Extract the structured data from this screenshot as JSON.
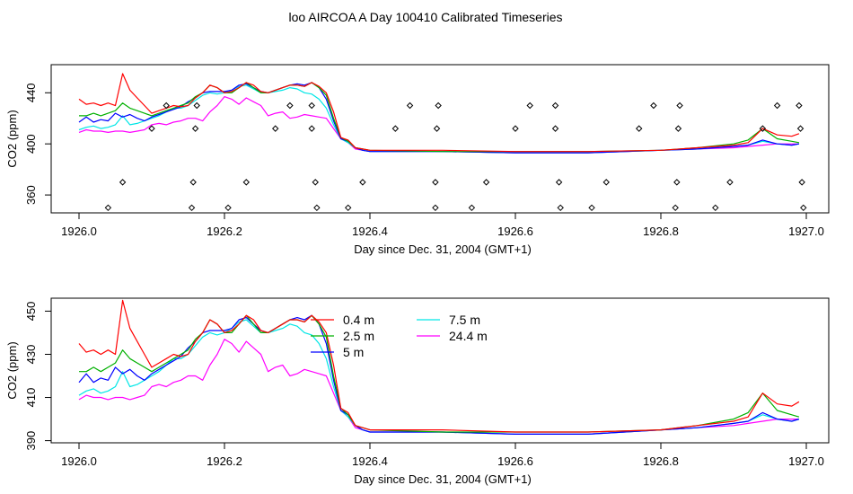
{
  "figure": {
    "title": "loo AIRCOA A  Day 100410  Calibrated Timeseries"
  },
  "colors": {
    "0.4 m": "#ff0000",
    "2.5 m": "#00b000",
    "5 m": "#0000ff",
    "7.5 m": "#00e6e6",
    "24.4 m": "#ff00ff",
    "markers": "#000000"
  },
  "chart_data": [
    {
      "type": "line",
      "xlabel": "Day since Dec. 31, 2004 (GMT+1)",
      "ylabel": "CO2 (ppm)",
      "xlim": [
        1926.0,
        1927.0
      ],
      "ylim": [
        346,
        462
      ],
      "xticks": [
        "1926.0",
        "1926.2",
        "1926.4",
        "1926.6",
        "1926.8",
        "1927.0"
      ],
      "yticks": [
        "360",
        "400",
        "440"
      ],
      "x": [
        1926.0,
        1926.01,
        1926.02,
        1926.03,
        1926.04,
        1926.05,
        1926.06,
        1926.07,
        1926.08,
        1926.09,
        1926.1,
        1926.11,
        1926.12,
        1926.13,
        1926.14,
        1926.15,
        1926.16,
        1926.17,
        1926.18,
        1926.19,
        1926.2,
        1926.21,
        1926.22,
        1926.23,
        1926.24,
        1926.25,
        1926.26,
        1926.27,
        1926.28,
        1926.29,
        1926.3,
        1926.31,
        1926.32,
        1926.33,
        1926.34,
        1926.35,
        1926.36,
        1926.37,
        1926.38,
        1926.39,
        1926.4,
        1926.5,
        1926.6,
        1926.7,
        1926.8,
        1926.85,
        1926.9,
        1926.92,
        1926.94,
        1926.96,
        1926.98,
        1926.99
      ],
      "series": [
        {
          "name": "0.4 m",
          "values": [
            435,
            431,
            432,
            430,
            432,
            430,
            455,
            442,
            436,
            430,
            424,
            426,
            428,
            430,
            429,
            430,
            436,
            440,
            446,
            444,
            440,
            441,
            444,
            448,
            446,
            441,
            440,
            442,
            444,
            446,
            446,
            445,
            448,
            445,
            440,
            425,
            405,
            403,
            397,
            396,
            395,
            395,
            394,
            394,
            395,
            397,
            399,
            401,
            412,
            407,
            406,
            408
          ]
        },
        {
          "name": "2.5 m",
          "values": [
            422,
            422,
            424,
            422,
            424,
            426,
            432,
            428,
            426,
            424,
            422,
            424,
            426,
            428,
            430,
            432,
            437,
            440,
            446,
            444,
            440,
            440,
            444,
            448,
            444,
            440,
            440,
            442,
            444,
            446,
            446,
            445,
            448,
            444,
            438,
            420,
            405,
            402,
            397,
            396,
            395,
            394,
            394,
            394,
            395,
            397,
            400,
            403,
            412,
            404,
            402,
            401
          ]
        },
        {
          "name": "5 m",
          "values": [
            417,
            421,
            417,
            419,
            418,
            424,
            421,
            423,
            420,
            418,
            421,
            423,
            425,
            427,
            429,
            433,
            436,
            440,
            441,
            441,
            441,
            442,
            446,
            447,
            444,
            441,
            440,
            442,
            444,
            446,
            447,
            446,
            448,
            444,
            435,
            418,
            404,
            402,
            397,
            395,
            394,
            394,
            393,
            393,
            395,
            396,
            398,
            399,
            403,
            400,
            399,
            400
          ]
        },
        {
          "name": "7.5 m",
          "values": [
            411,
            413,
            414,
            412,
            413,
            415,
            422,
            415,
            416,
            418,
            420,
            422,
            425,
            428,
            428,
            430,
            434,
            438,
            440,
            439,
            440,
            442,
            445,
            446,
            443,
            440,
            440,
            441,
            442,
            444,
            443,
            440,
            439,
            435,
            428,
            415,
            404,
            401,
            397,
            395,
            394,
            394,
            393,
            393,
            395,
            396,
            398,
            399,
            402,
            400,
            399,
            400
          ]
        },
        {
          "name": "24.4 m",
          "values": [
            409,
            411,
            410,
            410,
            409,
            410,
            410,
            409,
            410,
            411,
            415,
            416,
            415,
            417,
            418,
            420,
            420,
            418,
            425,
            430,
            437,
            435,
            431,
            436,
            433,
            430,
            422,
            424,
            425,
            420,
            421,
            423,
            422,
            421,
            420,
            412,
            404,
            401,
            396,
            395,
            394,
            394,
            393,
            393,
            395,
            396,
            397,
            398,
            399,
            400,
            400,
            400
          ]
        }
      ],
      "markers": {
        "shape": "open-diamond",
        "points": [
          {
            "x": 1926.04,
            "y": 350
          },
          {
            "x": 1926.06,
            "y": 370
          },
          {
            "x": 1926.1,
            "y": 412
          },
          {
            "x": 1926.12,
            "y": 430
          },
          {
            "x": 1926.155,
            "y": 350
          },
          {
            "x": 1926.157,
            "y": 370
          },
          {
            "x": 1926.16,
            "y": 412
          },
          {
            "x": 1926.162,
            "y": 430
          },
          {
            "x": 1926.205,
            "y": 350
          },
          {
            "x": 1926.23,
            "y": 370
          },
          {
            "x": 1926.27,
            "y": 412
          },
          {
            "x": 1926.29,
            "y": 430
          },
          {
            "x": 1926.32,
            "y": 412
          },
          {
            "x": 1926.32,
            "y": 430
          },
          {
            "x": 1926.325,
            "y": 370
          },
          {
            "x": 1926.327,
            "y": 350
          },
          {
            "x": 1926.37,
            "y": 350
          },
          {
            "x": 1926.39,
            "y": 370
          },
          {
            "x": 1926.435,
            "y": 412
          },
          {
            "x": 1926.455,
            "y": 430
          },
          {
            "x": 1926.49,
            "y": 350
          },
          {
            "x": 1926.49,
            "y": 370
          },
          {
            "x": 1926.492,
            "y": 412
          },
          {
            "x": 1926.494,
            "y": 430
          },
          {
            "x": 1926.54,
            "y": 350
          },
          {
            "x": 1926.56,
            "y": 370
          },
          {
            "x": 1926.6,
            "y": 412
          },
          {
            "x": 1926.62,
            "y": 430
          },
          {
            "x": 1926.655,
            "y": 412
          },
          {
            "x": 1926.655,
            "y": 430
          },
          {
            "x": 1926.66,
            "y": 370
          },
          {
            "x": 1926.662,
            "y": 350
          },
          {
            "x": 1926.705,
            "y": 350
          },
          {
            "x": 1926.725,
            "y": 370
          },
          {
            "x": 1926.77,
            "y": 412
          },
          {
            "x": 1926.79,
            "y": 430
          },
          {
            "x": 1926.82,
            "y": 350
          },
          {
            "x": 1926.822,
            "y": 370
          },
          {
            "x": 1926.824,
            "y": 412
          },
          {
            "x": 1926.826,
            "y": 430
          },
          {
            "x": 1926.875,
            "y": 350
          },
          {
            "x": 1926.895,
            "y": 370
          },
          {
            "x": 1926.94,
            "y": 412
          },
          {
            "x": 1926.96,
            "y": 430
          },
          {
            "x": 1926.99,
            "y": 430
          },
          {
            "x": 1926.992,
            "y": 412
          },
          {
            "x": 1926.994,
            "y": 370
          },
          {
            "x": 1926.996,
            "y": 350
          }
        ]
      }
    },
    {
      "type": "line",
      "xlabel": "Day since Dec. 31, 2004 (GMT+1)",
      "ylabel": "CO2 (ppm)",
      "xlim": [
        1926.0,
        1927.0
      ],
      "ylim": [
        389,
        456
      ],
      "xticks": [
        "1926.0",
        "1926.2",
        "1926.4",
        "1926.6",
        "1926.8",
        "1927.0"
      ],
      "yticks": [
        "390",
        "410",
        "430",
        "450"
      ],
      "legend": {
        "placement": "top-center",
        "entries": [
          "0.4 m",
          "2.5 m",
          "5 m",
          "7.5 m",
          "24.4 m"
        ]
      },
      "x": [
        1926.0,
        1926.01,
        1926.02,
        1926.03,
        1926.04,
        1926.05,
        1926.06,
        1926.07,
        1926.08,
        1926.09,
        1926.1,
        1926.11,
        1926.12,
        1926.13,
        1926.14,
        1926.15,
        1926.16,
        1926.17,
        1926.18,
        1926.19,
        1926.2,
        1926.21,
        1926.22,
        1926.23,
        1926.24,
        1926.25,
        1926.26,
        1926.27,
        1926.28,
        1926.29,
        1926.3,
        1926.31,
        1926.32,
        1926.33,
        1926.34,
        1926.35,
        1926.36,
        1926.37,
        1926.38,
        1926.39,
        1926.4,
        1926.5,
        1926.6,
        1926.7,
        1926.8,
        1926.85,
        1926.9,
        1926.92,
        1926.94,
        1926.96,
        1926.98,
        1926.99
      ],
      "series": [
        {
          "name": "0.4 m",
          "values": [
            435,
            431,
            432,
            430,
            432,
            430,
            455,
            442,
            436,
            430,
            424,
            426,
            428,
            430,
            429,
            430,
            436,
            440,
            446,
            444,
            440,
            441,
            444,
            448,
            446,
            441,
            440,
            442,
            444,
            446,
            446,
            445,
            448,
            445,
            440,
            425,
            405,
            403,
            397,
            396,
            395,
            395,
            394,
            394,
            395,
            397,
            399,
            401,
            412,
            407,
            406,
            408
          ]
        },
        {
          "name": "2.5 m",
          "values": [
            422,
            422,
            424,
            422,
            424,
            426,
            432,
            428,
            426,
            424,
            422,
            424,
            426,
            428,
            430,
            432,
            437,
            440,
            446,
            444,
            440,
            440,
            444,
            448,
            444,
            440,
            440,
            442,
            444,
            446,
            446,
            445,
            448,
            444,
            438,
            420,
            405,
            402,
            397,
            396,
            395,
            394,
            394,
            394,
            395,
            397,
            400,
            403,
            412,
            404,
            402,
            401
          ]
        },
        {
          "name": "5 m",
          "values": [
            417,
            421,
            417,
            419,
            418,
            424,
            421,
            423,
            420,
            418,
            421,
            423,
            425,
            427,
            429,
            433,
            436,
            440,
            441,
            441,
            441,
            442,
            446,
            447,
            444,
            441,
            440,
            442,
            444,
            446,
            447,
            446,
            448,
            444,
            435,
            418,
            404,
            402,
            397,
            395,
            394,
            394,
            393,
            393,
            395,
            396,
            398,
            399,
            403,
            400,
            399,
            400
          ]
        },
        {
          "name": "7.5 m",
          "values": [
            411,
            413,
            414,
            412,
            413,
            415,
            422,
            415,
            416,
            418,
            420,
            422,
            425,
            428,
            428,
            430,
            434,
            438,
            440,
            439,
            440,
            442,
            445,
            446,
            443,
            440,
            440,
            441,
            442,
            444,
            443,
            440,
            439,
            435,
            428,
            415,
            404,
            401,
            397,
            395,
            394,
            394,
            393,
            393,
            395,
            396,
            398,
            399,
            402,
            400,
            399,
            400
          ]
        },
        {
          "name": "24.4 m",
          "values": [
            409,
            411,
            410,
            410,
            409,
            410,
            410,
            409,
            410,
            411,
            415,
            416,
            415,
            417,
            418,
            420,
            420,
            418,
            425,
            430,
            437,
            435,
            431,
            436,
            433,
            430,
            422,
            424,
            425,
            420,
            421,
            423,
            422,
            421,
            420,
            412,
            404,
            401,
            396,
            395,
            394,
            394,
            393,
            393,
            395,
            396,
            397,
            398,
            399,
            400,
            400,
            400
          ]
        }
      ]
    }
  ]
}
